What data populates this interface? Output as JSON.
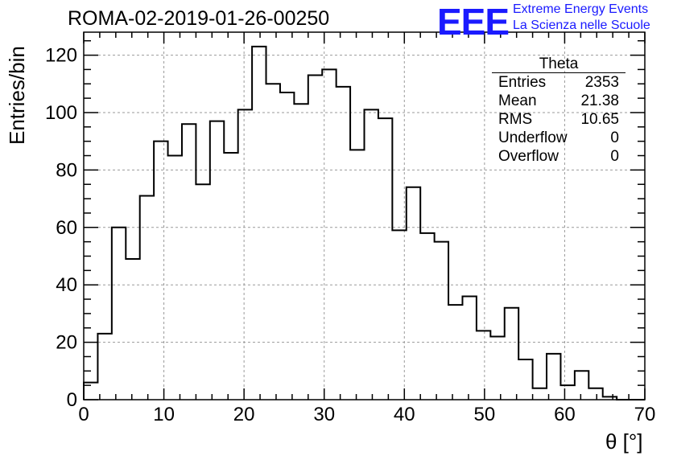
{
  "chart_data": {
    "type": "histogram",
    "title": "ROMA-02-2019-01-26-00250",
    "xlabel": "θ [°]",
    "ylabel": "Entries/bin",
    "xlim": [
      0,
      70
    ],
    "ylim": [
      0,
      128
    ],
    "bin_width": 1.75,
    "x_ticks": [
      0,
      10,
      20,
      30,
      40,
      50,
      60,
      70
    ],
    "y_ticks": [
      0,
      20,
      40,
      60,
      80,
      100,
      120
    ],
    "grid": true,
    "values": [
      6,
      23,
      60,
      49,
      71,
      90,
      85,
      96,
      75,
      97,
      86,
      101,
      123,
      110,
      107,
      103,
      113,
      115,
      109,
      87,
      101,
      98,
      59,
      74,
      58,
      55,
      33,
      36,
      24,
      22,
      32,
      14,
      4,
      16,
      5,
      10,
      4,
      1,
      0,
      0
    ]
  },
  "stats_box": {
    "title": "Theta",
    "rows": [
      {
        "label": "Entries",
        "value": "2353"
      },
      {
        "label": "Mean",
        "value": "21.38"
      },
      {
        "label": "RMS",
        "value": "10.65"
      },
      {
        "label": "Underflow",
        "value": "0"
      },
      {
        "label": "Overflow",
        "value": "0"
      }
    ]
  },
  "logo": {
    "mark": "EEE",
    "line1": "Extreme Energy Events",
    "line2": "La Scienza nelle Scuole",
    "color": "#1a1aff"
  }
}
